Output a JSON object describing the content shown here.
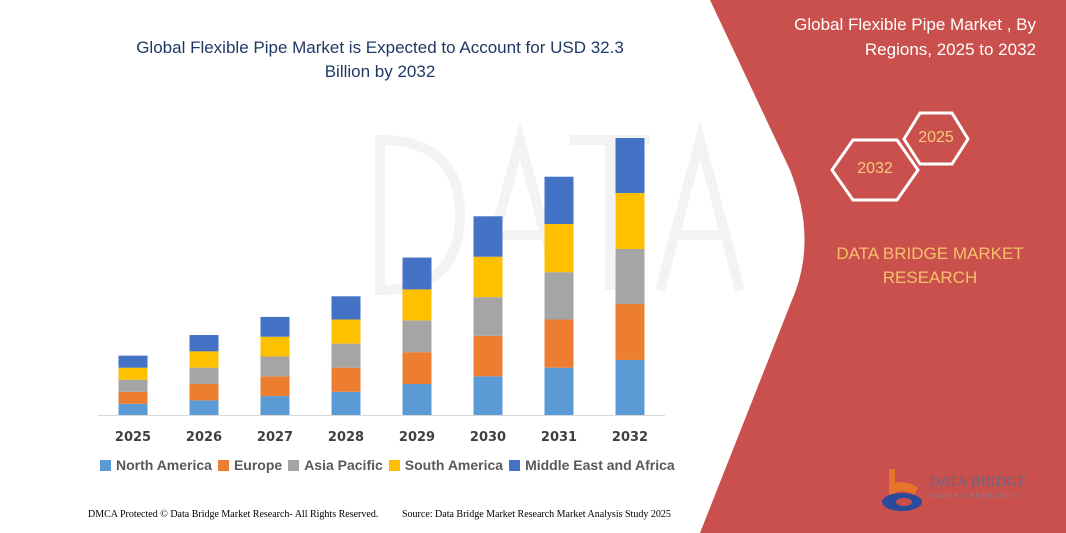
{
  "title": "Global Flexible Pipe Market is Expected to Account for USD 32.3 Billion by 2032",
  "side_panel": {
    "title": "Global Flexible Pipe Market , By Regions, 2025 to 2032",
    "hex_start": "2025",
    "hex_end": "2032",
    "brand": "DATA BRIDGE MARKET RESEARCH",
    "logo_text": "DATA BRIDGE",
    "logo_sub": "MARKET RESEARCH",
    "color": "#c9504d"
  },
  "footer": {
    "left": "DMCA Protected © Data Bridge Market Research- All Rights Reserved.",
    "right": "Source: Data Bridge Market Research Market Analysis Study 2025"
  },
  "chart_data": {
    "type": "bar",
    "stacked": true,
    "title": "Global Flexible Pipe Market is Expected to Account for USD 32.3 Billion by 2032",
    "xlabel": "",
    "ylabel": "",
    "grid": false,
    "legend_position": "bottom",
    "categories": [
      "2025",
      "2026",
      "2027",
      "2028",
      "2029",
      "2030",
      "2031",
      "2032"
    ],
    "ylim": [
      0,
      33
    ],
    "series": [
      {
        "name": "North America",
        "color": "#5b9bd5",
        "values": [
          1.3,
          1.7,
          2.2,
          2.7,
          3.6,
          4.5,
          5.5,
          6.4
        ]
      },
      {
        "name": "Europe",
        "color": "#ed7d31",
        "values": [
          1.4,
          1.9,
          2.3,
          2.8,
          3.7,
          4.7,
          5.6,
          6.5
        ]
      },
      {
        "name": "Asia Pacific",
        "color": "#a5a5a5",
        "values": [
          1.4,
          1.9,
          2.3,
          2.8,
          3.7,
          4.5,
          5.5,
          6.4
        ]
      },
      {
        "name": "South America",
        "color": "#ffc000",
        "values": [
          1.4,
          1.9,
          2.3,
          2.8,
          3.6,
          4.7,
          5.6,
          6.5
        ]
      },
      {
        "name": "Middle East and Africa",
        "color": "#4472c4",
        "values": [
          1.4,
          1.9,
          2.3,
          2.7,
          3.7,
          4.7,
          5.5,
          6.4
        ]
      }
    ]
  }
}
